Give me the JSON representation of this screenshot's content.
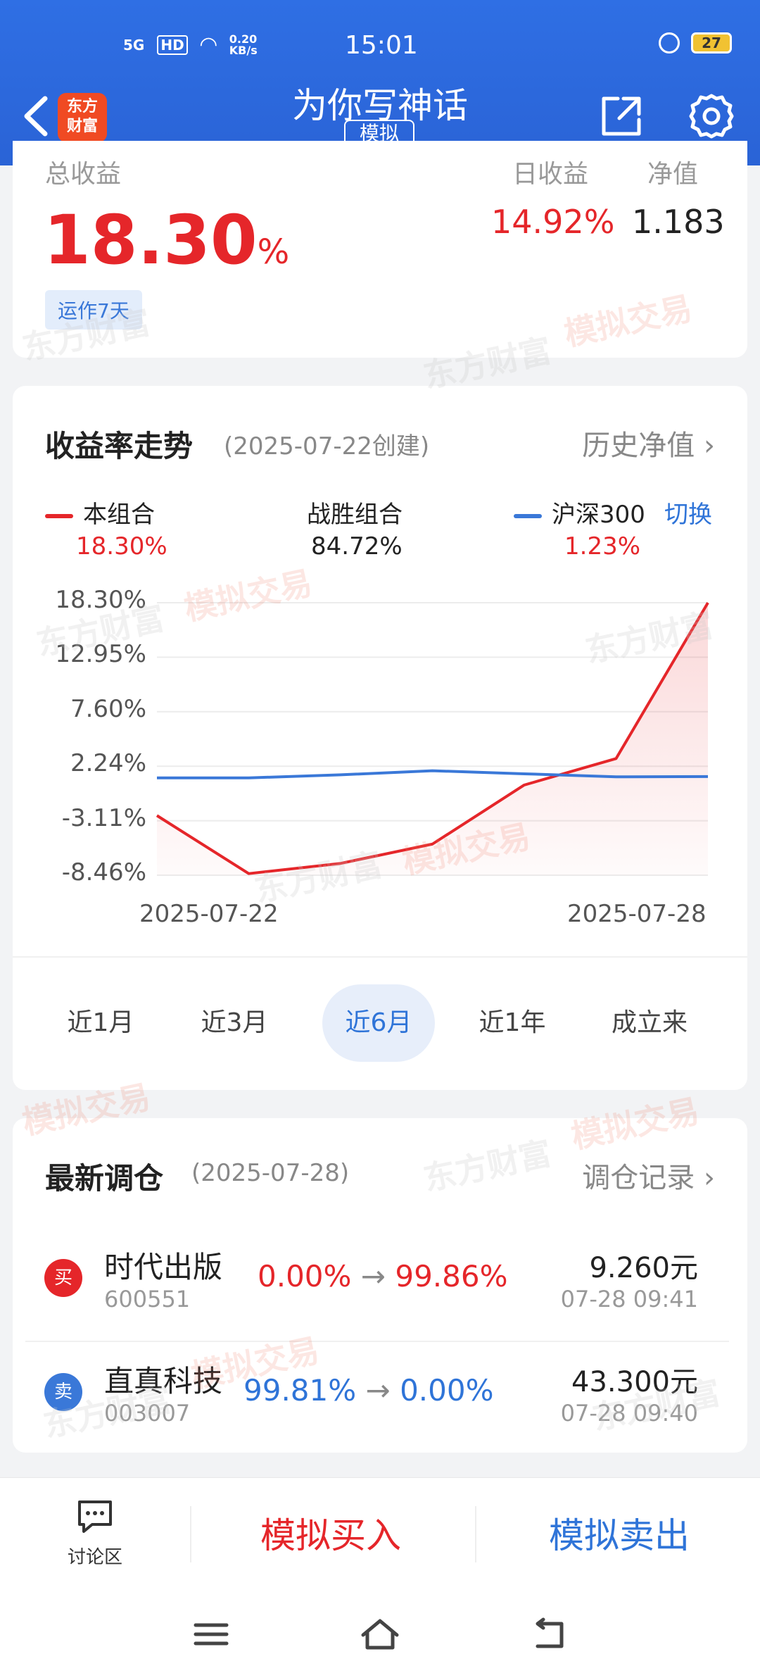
{
  "status_bar": {
    "network": "5G",
    "hd": "HD",
    "speed": "0.20 KB/s",
    "time": "15:01",
    "battery": "27"
  },
  "nav": {
    "logo_line1": "东方",
    "logo_line2": "财富",
    "title": "为你写神话",
    "tag": "模拟"
  },
  "summary": {
    "total_label": "总收益",
    "total_value": "18.30",
    "total_unit": "%",
    "running": "运作7天",
    "day_label": "日收益",
    "day_value": "14.92%",
    "nav_label": "净值",
    "nav_value": "1.183"
  },
  "trend": {
    "title": "收益率走势",
    "created": "(2025-07-22创建)",
    "history_link": "历史净值",
    "legend": [
      {
        "name": "本组合",
        "value": "18.30%",
        "color": "#e5262a"
      },
      {
        "name": "战胜组合",
        "value": "84.72%"
      },
      {
        "name": "沪深300",
        "value": "1.23%",
        "color": "#3a78d8"
      }
    ],
    "switch": "切换",
    "periods": [
      "近1月",
      "近3月",
      "近6月",
      "近1年",
      "成立来"
    ],
    "active_period": "近6月"
  },
  "chart_data": {
    "type": "line",
    "x": [
      "2025-07-22",
      "2025-07-23",
      "2025-07-24",
      "2025-07-25",
      "2025-07-26",
      "2025-07-27",
      "2025-07-28"
    ],
    "x_tick_labels": [
      "2025-07-22",
      "2025-07-28"
    ],
    "y_tick_labels": [
      "18.30%",
      "12.95%",
      "7.60%",
      "2.24%",
      "-3.11%",
      "-8.46%"
    ],
    "ylim": [
      -8.46,
      18.3
    ],
    "series": [
      {
        "name": "本组合",
        "color": "#e5262a",
        "x_index": [
          0,
          1,
          2,
          3,
          4,
          5,
          6
        ],
        "values": [
          -2.6,
          -8.3,
          -7.3,
          -5.4,
          0.4,
          3.0,
          18.3
        ]
      },
      {
        "name": "沪深300",
        "color": "#3a78d8",
        "x_index": [
          0,
          1,
          2,
          3,
          4,
          5,
          6
        ],
        "values": [
          1.1,
          1.1,
          1.4,
          1.8,
          1.5,
          1.2,
          1.23
        ]
      }
    ],
    "grid": true
  },
  "rebalance": {
    "title": "最新调仓",
    "date": "(2025-07-28)",
    "link": "调仓记录",
    "trades": [
      {
        "type": "买",
        "color": "#e5262a",
        "name": "时代出版",
        "code": "600551",
        "from": "0.00%",
        "arrow": "→",
        "to": "99.86%",
        "price": "9.260元",
        "time": "07-28  09:41"
      },
      {
        "type": "卖",
        "color": "#3a78d8",
        "name": "直真科技",
        "code": "003007",
        "from": "99.81%",
        "arrow": "→",
        "to": "0.00%",
        "price": "43.300元",
        "time": "07-28  09:40"
      }
    ]
  },
  "bottom": {
    "discuss": "讨论区",
    "buy": "模拟买入",
    "sell": "模拟卖出"
  },
  "watermark": {
    "brand": "东方财富",
    "label": "模拟交易"
  }
}
